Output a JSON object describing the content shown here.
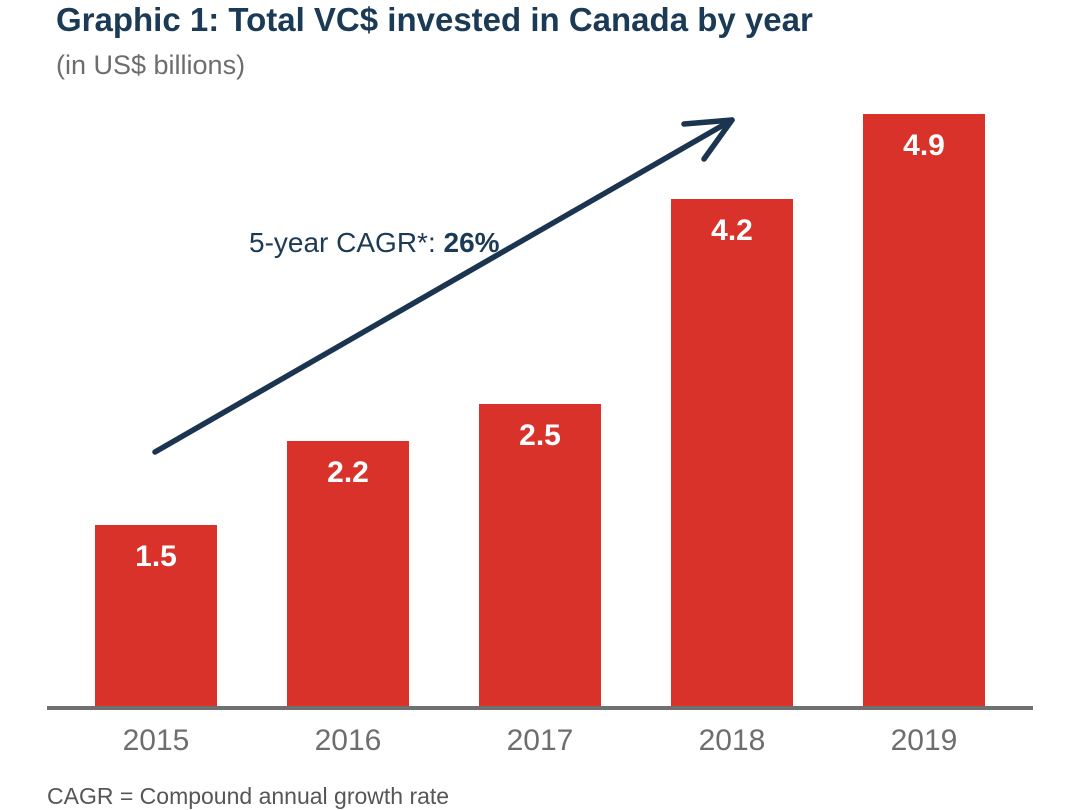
{
  "header": {
    "title": "Graphic 1: Total VC$ invested in Canada by year",
    "subtitle": "(in US$ billions)"
  },
  "chart_data": {
    "type": "bar",
    "categories": [
      "2015",
      "2016",
      "2017",
      "2018",
      "2019"
    ],
    "values": [
      1.5,
      2.2,
      2.5,
      4.2,
      4.9
    ],
    "value_labels": [
      "1.5",
      "2.2",
      "2.5",
      "4.2",
      "4.9"
    ],
    "title": "Graphic 1: Total VC$ invested in Canada by year",
    "subtitle": "(in US$ billions)",
    "xlabel": "",
    "ylabel": "",
    "ylim": [
      0,
      5
    ],
    "grid": false,
    "legend": null,
    "bar_color": "#d9322a",
    "annotation": {
      "label": "5-year CAGR*: ",
      "value": "26%",
      "has_arrow": true
    },
    "footnote": "CAGR = Compound annual growth rate"
  },
  "colors": {
    "background": "#ffffff",
    "title": "#1b3a55",
    "subtitle": "#6d6d6d",
    "bar": "#d9322a",
    "value_label": "#ffffff",
    "axis_line": "#707070",
    "tick_label": "#6e6e6e",
    "arrow": "#1b3550",
    "footnote": "#565656"
  }
}
